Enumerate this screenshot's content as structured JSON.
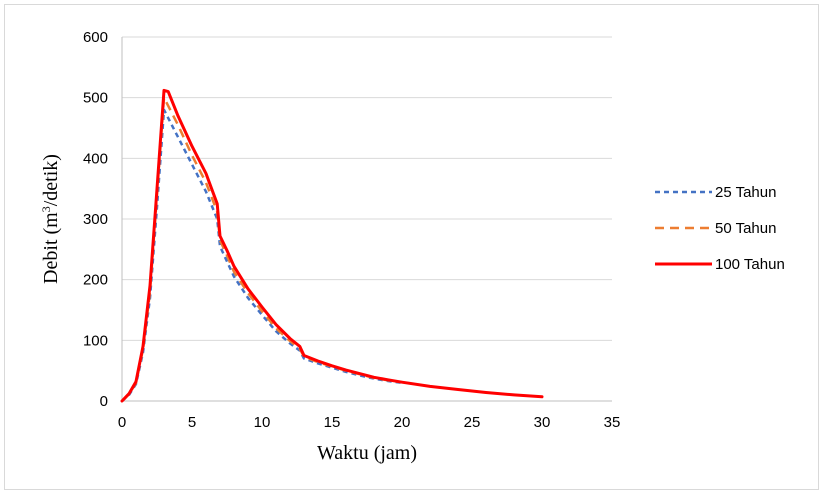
{
  "chart_data": {
    "type": "line",
    "title": "",
    "xlabel": "Waktu (jam)",
    "ylabel_prefix": "Debit (m",
    "ylabel_sup": "3",
    "ylabel_suffix": "/detik)",
    "xlim": [
      0,
      35
    ],
    "ylim": [
      0,
      600
    ],
    "xticks": [
      0,
      5,
      10,
      15,
      20,
      25,
      30,
      35
    ],
    "yticks": [
      0,
      100,
      200,
      300,
      400,
      500,
      600
    ],
    "grid": "horizontal",
    "legend_position": "right",
    "series": [
      {
        "name": "25 Tahun",
        "color": "#4472c4",
        "style": "dashed",
        "points": [
          [
            0,
            0
          ],
          [
            0.5,
            10
          ],
          [
            1,
            28
          ],
          [
            1.5,
            80
          ],
          [
            2,
            170
          ],
          [
            2.5,
            320
          ],
          [
            3,
            480
          ],
          [
            4,
            435
          ],
          [
            5,
            390
          ],
          [
            6,
            345
          ],
          [
            6.8,
            300
          ],
          [
            7,
            255
          ],
          [
            7.5,
            230
          ],
          [
            8,
            205
          ],
          [
            9,
            170
          ],
          [
            10,
            142
          ],
          [
            11,
            115
          ],
          [
            12,
            95
          ],
          [
            12.7,
            83
          ],
          [
            13,
            70
          ],
          [
            14,
            62
          ],
          [
            15,
            55
          ],
          [
            16,
            48
          ],
          [
            17,
            42
          ],
          [
            18,
            37
          ],
          [
            19,
            33
          ],
          [
            20,
            30
          ]
        ]
      },
      {
        "name": "50 Tahun",
        "color": "#ed7d31",
        "style": "dashed",
        "points": [
          [
            0,
            0
          ],
          [
            0.5,
            11
          ],
          [
            1,
            30
          ],
          [
            1.5,
            85
          ],
          [
            2,
            180
          ],
          [
            2.5,
            340
          ],
          [
            3,
            500
          ],
          [
            4,
            455
          ],
          [
            5,
            405
          ],
          [
            6,
            360
          ],
          [
            6.8,
            312
          ],
          [
            7,
            265
          ],
          [
            7.5,
            240
          ],
          [
            8,
            213
          ],
          [
            9,
            178
          ],
          [
            10,
            148
          ],
          [
            11,
            120
          ],
          [
            12,
            99
          ],
          [
            12.7,
            86
          ],
          [
            13,
            73
          ],
          [
            14,
            64
          ],
          [
            15,
            57
          ],
          [
            16,
            50
          ],
          [
            17,
            44
          ],
          [
            18,
            38
          ],
          [
            19,
            34
          ],
          [
            20,
            31
          ]
        ]
      },
      {
        "name": "100 Tahun",
        "color": "#ff0000",
        "style": "solid",
        "points": [
          [
            0,
            0
          ],
          [
            0.5,
            12
          ],
          [
            1,
            32
          ],
          [
            1.5,
            90
          ],
          [
            2,
            190
          ],
          [
            2.5,
            350
          ],
          [
            3,
            512
          ],
          [
            3.3,
            510
          ],
          [
            4,
            470
          ],
          [
            5,
            420
          ],
          [
            6,
            375
          ],
          [
            6.8,
            325
          ],
          [
            7,
            272
          ],
          [
            7.5,
            248
          ],
          [
            8,
            222
          ],
          [
            9,
            185
          ],
          [
            10,
            155
          ],
          [
            11,
            126
          ],
          [
            12,
            103
          ],
          [
            12.7,
            90
          ],
          [
            13,
            75
          ],
          [
            14,
            66
          ],
          [
            15,
            58
          ],
          [
            16,
            51
          ],
          [
            17,
            45
          ],
          [
            18,
            39
          ],
          [
            19,
            35
          ],
          [
            20,
            31
          ],
          [
            22,
            24
          ],
          [
            24,
            19
          ],
          [
            26,
            14
          ],
          [
            28,
            10
          ],
          [
            30,
            7
          ]
        ]
      }
    ]
  }
}
